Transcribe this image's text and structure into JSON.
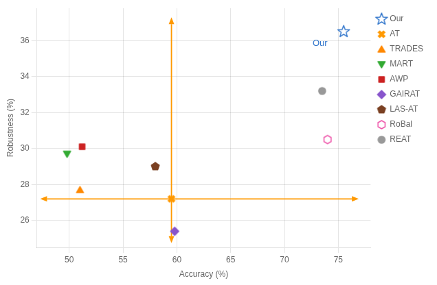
{
  "chart_data": {
    "type": "scatter",
    "xlabel": "Accuracy (%)",
    "ylabel": "Robustness (%)",
    "series": [
      {
        "name": "Our",
        "color": "#3377cc",
        "marker": "star-open",
        "x": [
          75.5
        ],
        "values": [
          36.5
        ]
      },
      {
        "name": "AT",
        "color": "#ff9900",
        "marker": "x",
        "x": [
          59.5
        ],
        "values": [
          27.2
        ]
      },
      {
        "name": "TRADES",
        "color": "#ff8800",
        "marker": "triangle-up",
        "x": [
          51.0
        ],
        "values": [
          27.7
        ]
      },
      {
        "name": "MART",
        "color": "#33aa33",
        "marker": "triangle-down",
        "x": [
          49.8
        ],
        "values": [
          29.7
        ]
      },
      {
        "name": "AWP",
        "color": "#cc2222",
        "marker": "square",
        "x": [
          51.2
        ],
        "values": [
          30.1
        ]
      },
      {
        "name": "GAIRAT",
        "color": "#8855cc",
        "marker": "diamond",
        "x": [
          59.8
        ],
        "values": [
          25.4
        ]
      },
      {
        "name": "LAS-AT",
        "color": "#7a4022",
        "marker": "pentagon",
        "x": [
          58.0
        ],
        "values": [
          29.0
        ]
      },
      {
        "name": "RoBal",
        "color": "#ee55aa",
        "marker": "hexagon-open",
        "x": [
          74.0
        ],
        "values": [
          30.5
        ]
      },
      {
        "name": "REAT",
        "color": "#999999",
        "marker": "circle",
        "x": [
          73.5
        ],
        "values": [
          33.2
        ]
      }
    ],
    "annotations": [
      {
        "type": "arrow",
        "x": 59.5,
        "y": 27.2,
        "x_end": 59.5,
        "y_end": 37.3,
        "color": "#ff9900"
      },
      {
        "type": "arrow",
        "x": 59.5,
        "y": 27.2,
        "x_end": 59.5,
        "y_end": 24.75,
        "color": "#ff9900"
      },
      {
        "type": "arrow",
        "x": 59.5,
        "y": 27.2,
        "x_end": 47.3,
        "y_end": 27.2,
        "color": "#ff9900"
      },
      {
        "type": "arrow",
        "x": 59.5,
        "y": 27.2,
        "x_end": 76.9,
        "y_end": 27.2,
        "color": "#ff9900"
      },
      {
        "type": "text",
        "text": "Our",
        "x": 74.0,
        "y": 36.1,
        "color": "#3377cc"
      }
    ],
    "xlim": [
      47.0,
      78.0
    ],
    "ylim": [
      24.5,
      37.8
    ],
    "xticks": [
      50,
      55,
      60,
      65,
      70,
      75
    ],
    "yticks": [
      26,
      28,
      30,
      32,
      34,
      36
    ],
    "grid": true,
    "legend": "right"
  }
}
